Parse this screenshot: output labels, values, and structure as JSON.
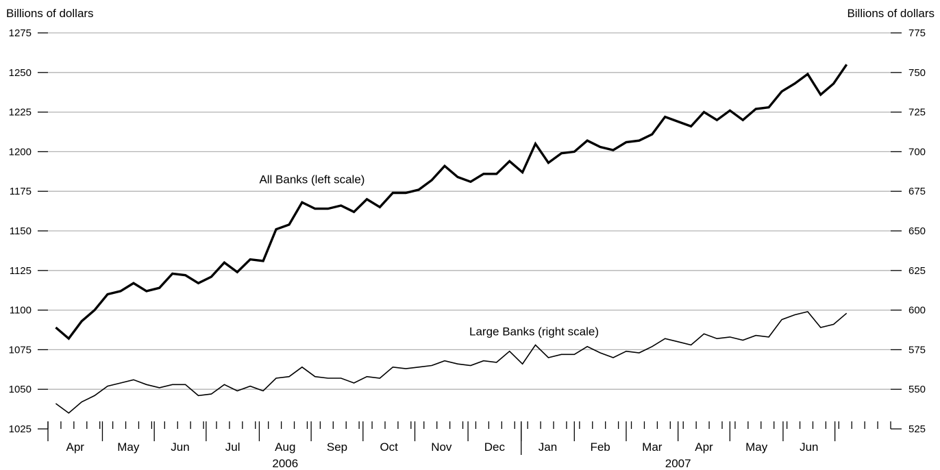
{
  "chart_data": {
    "type": "line",
    "left_axis": {
      "unit_label": "Billions of dollars",
      "ylim": [
        1025,
        1275
      ],
      "ticks": [
        "1025",
        "1050",
        "1075",
        "1100",
        "1125",
        "1150",
        "1175",
        "1200",
        "1225",
        "1250",
        "1275"
      ]
    },
    "right_axis": {
      "unit_label": "Billions of dollars",
      "ylim": [
        525,
        775
      ],
      "ticks": [
        "525",
        "550",
        "575",
        "600",
        "625",
        "650",
        "675",
        "700",
        "725",
        "750",
        "775"
      ]
    },
    "grid": true,
    "x_axis": {
      "start_week": 0,
      "end_week": 65,
      "months": [
        {
          "label": "Apr",
          "start": 0,
          "end": 4.2
        },
        {
          "label": "May",
          "start": 4.2,
          "end": 8.2
        },
        {
          "label": "Jun",
          "start": 8.2,
          "end": 12.2
        },
        {
          "label": "Jul",
          "start": 12.2,
          "end": 16.3
        },
        {
          "label": "Aug",
          "start": 16.3,
          "end": 20.3
        },
        {
          "label": "Sep",
          "start": 20.3,
          "end": 24.3
        },
        {
          "label": "Oct",
          "start": 24.3,
          "end": 28.3
        },
        {
          "label": "Nov",
          "start": 28.3,
          "end": 32.4
        },
        {
          "label": "Dec",
          "start": 32.4,
          "end": 36.5
        },
        {
          "label": "Jan",
          "start": 36.5,
          "end": 40.6
        },
        {
          "label": "Feb",
          "start": 40.6,
          "end": 44.6
        },
        {
          "label": "Mar",
          "start": 44.6,
          "end": 48.6
        },
        {
          "label": "Apr",
          "start": 48.6,
          "end": 52.6
        },
        {
          "label": "May",
          "start": 52.6,
          "end": 56.7
        },
        {
          "label": "Jun",
          "start": 56.7,
          "end": 60.7
        }
      ],
      "years": [
        {
          "label": "2006",
          "center": 18.3
        },
        {
          "label": "2007",
          "center": 48.6
        }
      ],
      "year_divider": 36.5
    },
    "annotations": [
      {
        "text": "All Banks (left scale)",
        "x_week": 16.3,
        "y": 1180,
        "axis": "left"
      },
      {
        "text": "Large Banks (right scale)",
        "x_week": 32.5,
        "y": 584,
        "axis": "right"
      }
    ],
    "series": [
      {
        "name": "All Banks (left scale)",
        "axis": "left",
        "start_week": 0.6,
        "values": [
          1089,
          1082,
          1093,
          1100,
          1110,
          1112,
          1117,
          1112,
          1114,
          1123,
          1122,
          1117,
          1121,
          1130,
          1124,
          1132,
          1131,
          1151,
          1154,
          1168,
          1164,
          1164,
          1166,
          1162,
          1170,
          1165,
          1174,
          1174,
          1176,
          1182,
          1191,
          1184,
          1181,
          1186,
          1186,
          1194,
          1187,
          1205,
          1193,
          1199,
          1200,
          1207,
          1203,
          1201,
          1206,
          1207,
          1211,
          1222,
          1219,
          1216,
          1225,
          1220,
          1226,
          1220,
          1227,
          1228,
          1238,
          1243,
          1249,
          1236,
          1243,
          1255
        ]
      },
      {
        "name": "Large Banks (right scale)",
        "axis": "right",
        "start_week": 0.6,
        "values": [
          541,
          535,
          542,
          546,
          552,
          554,
          556,
          553,
          551,
          553,
          553,
          546,
          547,
          553,
          549,
          552,
          549,
          557,
          558,
          564,
          558,
          557,
          557,
          554,
          558,
          557,
          564,
          563,
          564,
          565,
          568,
          566,
          565,
          568,
          567,
          574,
          566,
          578,
          570,
          572,
          572,
          577,
          573,
          570,
          574,
          573,
          577,
          582,
          580,
          578,
          585,
          582,
          583,
          581,
          584,
          583,
          594,
          597,
          599,
          589,
          591,
          598
        ]
      }
    ]
  }
}
